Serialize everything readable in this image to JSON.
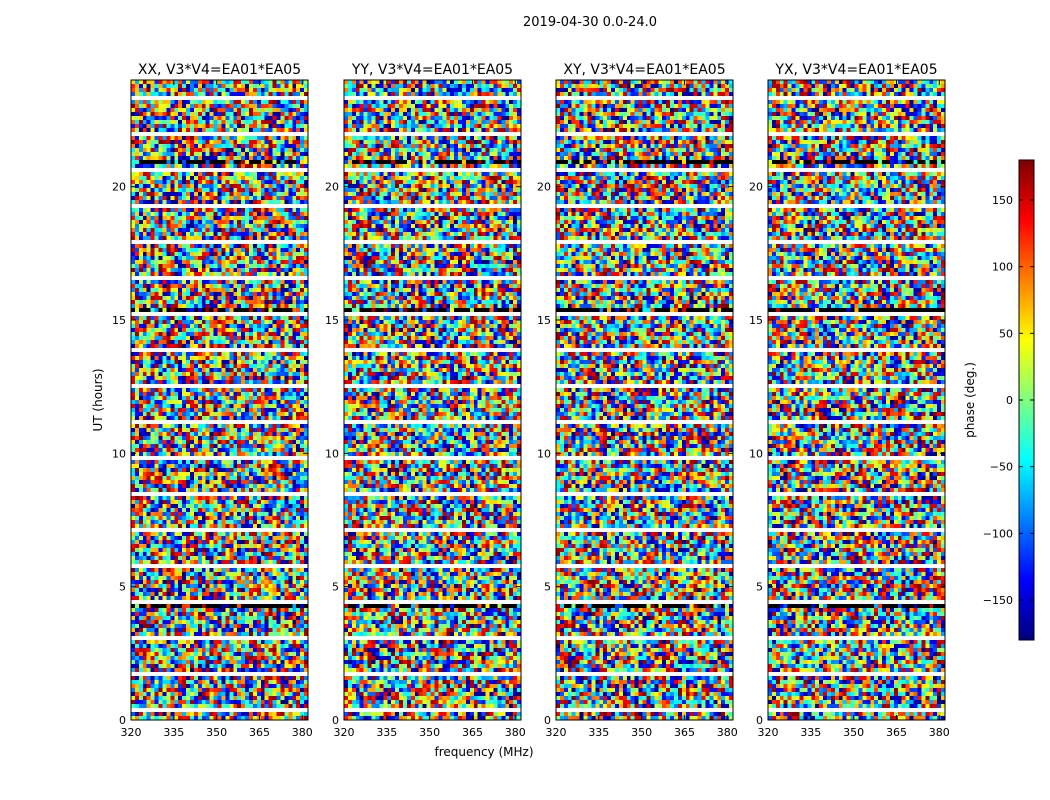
{
  "chart_data": {
    "type": "heatmap",
    "suptitle": "2019-04-30 0.0-24.0",
    "xlabel": "frequency (MHz)",
    "ylabel": "UT (hours)",
    "xlim": [
      320,
      382
    ],
    "ylim": [
      0,
      24
    ],
    "xticks": [
      320,
      335,
      350,
      365,
      380
    ],
    "yticks": [
      0,
      5,
      10,
      15,
      20
    ],
    "panels": [
      {
        "title": "XX, V3*V4=EA01*EA05"
      },
      {
        "title": "YY, V3*V4=EA01*EA05"
      },
      {
        "title": "XY, V3*V4=EA01*EA05"
      },
      {
        "title": "YX, V3*V4=EA01*EA05"
      }
    ],
    "colorbar": {
      "label": "phase (deg.)",
      "range": [
        -180,
        180
      ],
      "ticks": [
        -150,
        -100,
        -50,
        0,
        50,
        100,
        150
      ],
      "tick_labels": [
        "−150",
        "−100",
        "−50",
        "0",
        "50",
        "100",
        "150"
      ],
      "colormap": [
        "#00007f",
        "#0000ff",
        "#007fff",
        "#00ffff",
        "#7fff7f",
        "#ffff00",
        "#ff7f00",
        "#ff0000",
        "#7f0000"
      ]
    }
  }
}
